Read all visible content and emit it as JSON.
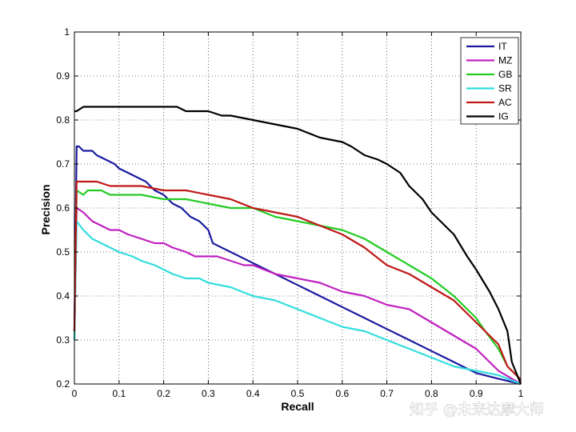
{
  "chart_data": {
    "type": "line",
    "title": "",
    "xlabel": "Recall",
    "ylabel": "Precision",
    "xlim": [
      0,
      1
    ],
    "ylim": [
      0.2,
      1
    ],
    "grid": "dotted",
    "legend_position": "top-right",
    "x_ticks": [
      "0",
      "0.1",
      "0.2",
      "0.3",
      "0.4",
      "0.5",
      "0.6",
      "0.7",
      "0.8",
      "0.9",
      "1"
    ],
    "y_ticks": [
      "0.2",
      "0.3",
      "0.4",
      "0.5",
      "0.6",
      "0.7",
      "0.8",
      "0.9",
      "1"
    ],
    "series": [
      {
        "name": "IT",
        "color": "#1a1aa0",
        "x": [
          0,
          0.005,
          0.01,
          0.02,
          0.04,
          0.05,
          0.07,
          0.09,
          0.1,
          0.12,
          0.14,
          0.16,
          0.18,
          0.2,
          0.22,
          0.24,
          0.26,
          0.28,
          0.29,
          0.3,
          0.31,
          0.32,
          0.35,
          0.4,
          0.45,
          0.5,
          0.55,
          0.6,
          0.65,
          0.7,
          0.75,
          0.8,
          0.85,
          0.9,
          0.95,
          1.0
        ],
        "y": [
          0.32,
          0.74,
          0.74,
          0.73,
          0.73,
          0.72,
          0.71,
          0.7,
          0.69,
          0.68,
          0.67,
          0.66,
          0.64,
          0.63,
          0.61,
          0.6,
          0.58,
          0.57,
          0.56,
          0.55,
          0.52,
          0.515,
          0.5,
          0.475,
          0.45,
          0.425,
          0.4,
          0.375,
          0.35,
          0.325,
          0.3,
          0.275,
          0.25,
          0.225,
          0.212,
          0.2
        ]
      },
      {
        "name": "MZ",
        "color": "#c020c0",
        "x": [
          0,
          0.005,
          0.02,
          0.04,
          0.06,
          0.08,
          0.1,
          0.12,
          0.15,
          0.18,
          0.2,
          0.22,
          0.25,
          0.27,
          0.3,
          0.32,
          0.35,
          0.38,
          0.4,
          0.45,
          0.5,
          0.55,
          0.6,
          0.65,
          0.7,
          0.75,
          0.8,
          0.85,
          0.9,
          0.95,
          1.0
        ],
        "y": [
          0.3,
          0.6,
          0.59,
          0.57,
          0.56,
          0.55,
          0.55,
          0.54,
          0.53,
          0.52,
          0.52,
          0.51,
          0.5,
          0.49,
          0.49,
          0.49,
          0.48,
          0.47,
          0.47,
          0.45,
          0.44,
          0.43,
          0.41,
          0.4,
          0.38,
          0.37,
          0.34,
          0.31,
          0.28,
          0.23,
          0.2
        ]
      },
      {
        "name": "GB",
        "color": "#22cc22",
        "x": [
          0,
          0.005,
          0.02,
          0.03,
          0.06,
          0.08,
          0.1,
          0.15,
          0.2,
          0.25,
          0.3,
          0.35,
          0.4,
          0.45,
          0.5,
          0.55,
          0.6,
          0.65,
          0.7,
          0.75,
          0.8,
          0.85,
          0.88,
          0.9,
          0.92,
          0.95,
          0.97,
          1.0
        ],
        "y": [
          0.3,
          0.64,
          0.63,
          0.64,
          0.64,
          0.63,
          0.63,
          0.63,
          0.62,
          0.62,
          0.61,
          0.6,
          0.6,
          0.58,
          0.57,
          0.56,
          0.55,
          0.53,
          0.5,
          0.47,
          0.44,
          0.4,
          0.37,
          0.35,
          0.32,
          0.28,
          0.24,
          0.21
        ]
      },
      {
        "name": "SR",
        "color": "#33dddd",
        "x": [
          0,
          0.005,
          0.02,
          0.04,
          0.06,
          0.08,
          0.1,
          0.13,
          0.15,
          0.18,
          0.2,
          0.22,
          0.25,
          0.28,
          0.3,
          0.35,
          0.4,
          0.45,
          0.5,
          0.55,
          0.6,
          0.65,
          0.7,
          0.75,
          0.8,
          0.85,
          0.9,
          0.95,
          1.0
        ],
        "y": [
          0.3,
          0.57,
          0.55,
          0.53,
          0.52,
          0.51,
          0.5,
          0.49,
          0.48,
          0.47,
          0.46,
          0.45,
          0.44,
          0.44,
          0.43,
          0.42,
          0.4,
          0.39,
          0.37,
          0.35,
          0.33,
          0.32,
          0.3,
          0.28,
          0.26,
          0.24,
          0.23,
          0.22,
          0.2
        ]
      },
      {
        "name": "AC",
        "color": "#c01818",
        "x": [
          0,
          0.005,
          0.03,
          0.05,
          0.08,
          0.1,
          0.15,
          0.2,
          0.25,
          0.3,
          0.35,
          0.4,
          0.45,
          0.5,
          0.55,
          0.6,
          0.65,
          0.7,
          0.75,
          0.8,
          0.85,
          0.88,
          0.9,
          0.92,
          0.95,
          0.97,
          1.0
        ],
        "y": [
          0.32,
          0.66,
          0.66,
          0.66,
          0.65,
          0.65,
          0.65,
          0.64,
          0.64,
          0.63,
          0.62,
          0.6,
          0.59,
          0.58,
          0.56,
          0.54,
          0.51,
          0.47,
          0.45,
          0.42,
          0.39,
          0.36,
          0.34,
          0.32,
          0.29,
          0.24,
          0.21
        ]
      },
      {
        "name": "IG",
        "color": "#000000",
        "x": [
          0,
          0.005,
          0.02,
          0.05,
          0.1,
          0.15,
          0.2,
          0.23,
          0.25,
          0.3,
          0.33,
          0.35,
          0.4,
          0.45,
          0.5,
          0.55,
          0.6,
          0.62,
          0.65,
          0.68,
          0.7,
          0.73,
          0.75,
          0.78,
          0.8,
          0.83,
          0.85,
          0.88,
          0.9,
          0.93,
          0.95,
          0.97,
          0.98,
          1.0
        ],
        "y": [
          0.82,
          0.82,
          0.83,
          0.83,
          0.83,
          0.83,
          0.83,
          0.83,
          0.82,
          0.82,
          0.81,
          0.81,
          0.8,
          0.79,
          0.78,
          0.76,
          0.75,
          0.74,
          0.72,
          0.71,
          0.7,
          0.68,
          0.65,
          0.62,
          0.59,
          0.56,
          0.54,
          0.49,
          0.46,
          0.41,
          0.37,
          0.32,
          0.25,
          0.2
        ]
      }
    ]
  },
  "watermark": "知乎 @未来达摩大师"
}
